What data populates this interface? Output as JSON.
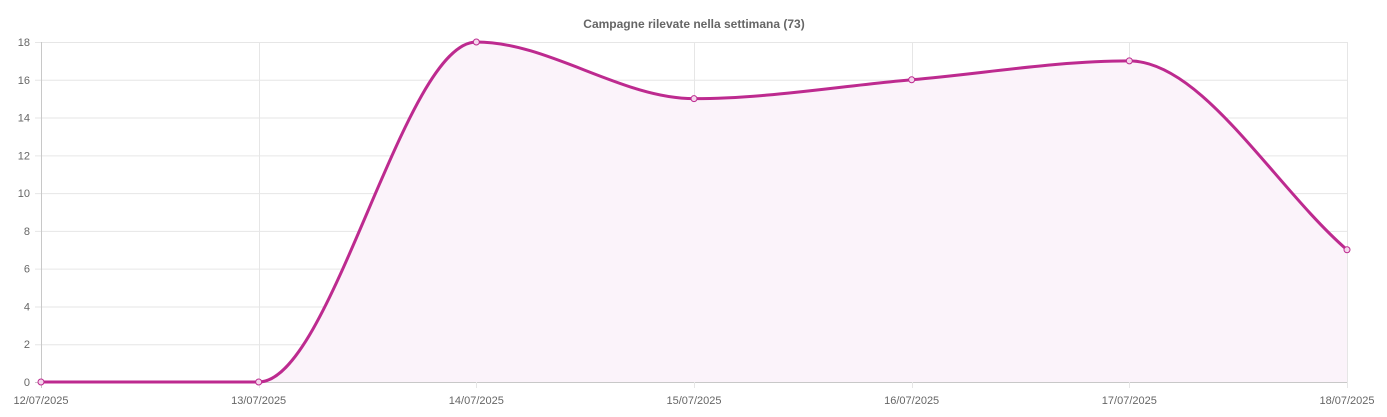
{
  "chart_data": {
    "type": "line",
    "title": "Campagne rilevate nella settimana (73)",
    "xlabel": "",
    "ylabel": "",
    "categories": [
      "12/07/2025",
      "13/07/2025",
      "14/07/2025",
      "15/07/2025",
      "16/07/2025",
      "17/07/2025",
      "18/07/2025"
    ],
    "series": [
      {
        "values": [
          0,
          0,
          18,
          15,
          16,
          17,
          7
        ],
        "line_color": "#bd2a8f",
        "fill_color": "#fbf3fa"
      }
    ],
    "ylim": [
      0,
      18
    ],
    "yticks": [
      "0",
      "2",
      "4",
      "6",
      "8",
      "10",
      "12",
      "14",
      "16",
      "18"
    ],
    "grid": true,
    "legend": "none",
    "curve": "smooth",
    "filled": true
  }
}
